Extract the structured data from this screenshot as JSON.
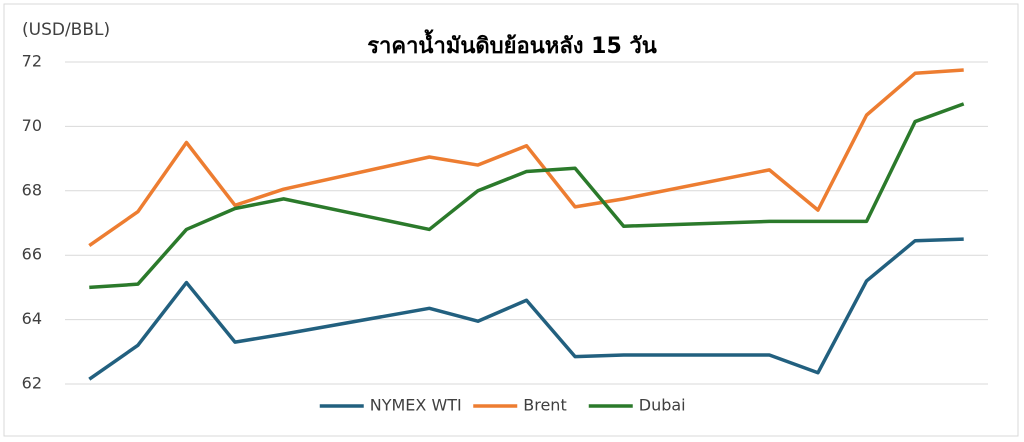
{
  "chart_data": {
    "type": "line",
    "title": "ราคาน้ำมันดิบย้อนหลัง 15 วัน",
    "y_label": "(USD/BBL)",
    "x": [
      0,
      1,
      2,
      3,
      4,
      7,
      8,
      9,
      10,
      11,
      14,
      15,
      16,
      17,
      18
    ],
    "xlim": [
      -0.5,
      18.5
    ],
    "ylim": [
      62,
      72
    ],
    "yticks": [
      62,
      64,
      66,
      68,
      70,
      72
    ],
    "grid": true,
    "legend": "bottom",
    "series": [
      {
        "name": "NYMEX WTI",
        "color": "#22607f",
        "values": [
          62.15,
          63.2,
          65.15,
          63.3,
          63.55,
          64.35,
          63.95,
          64.6,
          62.85,
          62.9,
          62.9,
          62.35,
          65.2,
          66.45,
          66.5
        ]
      },
      {
        "name": "Brent",
        "color": "#ed7d31",
        "values": [
          66.3,
          67.35,
          69.5,
          67.55,
          68.05,
          69.05,
          68.8,
          69.4,
          67.5,
          67.75,
          68.65,
          67.4,
          70.35,
          71.65,
          71.75
        ]
      },
      {
        "name": "Dubai",
        "color": "#2b7a2b",
        "values": [
          65.0,
          65.1,
          66.8,
          67.45,
          67.75,
          66.8,
          68.0,
          68.6,
          68.7,
          66.9,
          67.05,
          67.05,
          67.05,
          70.15,
          70.7
        ]
      }
    ]
  }
}
